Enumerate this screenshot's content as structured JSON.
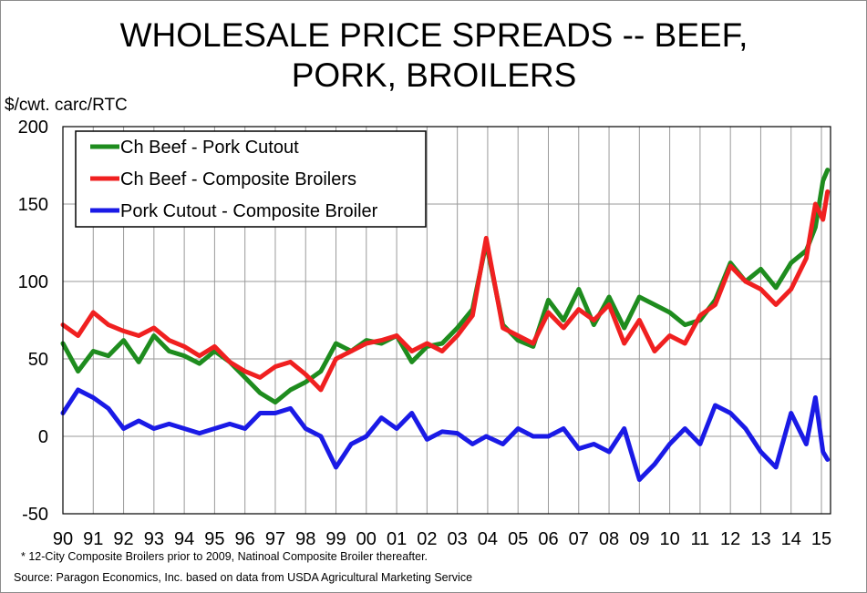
{
  "chart_data": {
    "type": "line",
    "title_lines": [
      "WHOLESALE PRICE SPREADS -- BEEF,",
      "PORK, BROILERS"
    ],
    "ylabel": "$/cwt. carc/RTC",
    "xlabel": "",
    "ylim": [
      -50,
      200
    ],
    "yticks": [
      -50,
      0,
      50,
      100,
      150,
      200
    ],
    "xlim": [
      1990,
      2015.3
    ],
    "xtick_labels": [
      "90",
      "91",
      "92",
      "93",
      "94",
      "95",
      "96",
      "97",
      "98",
      "99",
      "00",
      "01",
      "02",
      "03",
      "04",
      "05",
      "06",
      "07",
      "08",
      "09",
      "10",
      "11",
      "12",
      "13",
      "14",
      "15"
    ],
    "grid": true,
    "legend_position": "top-left",
    "footnote": "* 12-City Composite Broilers prior to 2009, Natinoal Composite Broiler thereafter.",
    "source": "Source:  Paragon Economics, Inc. based on data from USDA Agricultural Marketing Service",
    "series": [
      {
        "name": "Ch Beef - Pork Cutout",
        "color": "#1e8c1e",
        "x": [
          1990,
          1990.5,
          1991,
          1991.5,
          1992,
          1992.5,
          1993,
          1993.5,
          1994,
          1994.5,
          1995,
          1995.5,
          1996,
          1996.5,
          1997,
          1997.5,
          1998,
          1998.5,
          1999,
          1999.5,
          2000,
          2000.5,
          2001,
          2001.5,
          2002,
          2002.5,
          2003,
          2003.5,
          2003.95,
          2004.5,
          2005,
          2005.5,
          2006,
          2006.5,
          2007,
          2007.5,
          2008,
          2008.5,
          2009,
          2009.5,
          2010,
          2010.5,
          2011,
          2011.5,
          2012,
          2012.5,
          2013,
          2013.5,
          2014,
          2014.5,
          2014.8,
          2015.05,
          2015.2
        ],
        "y": [
          60,
          42,
          55,
          52,
          62,
          48,
          65,
          55,
          52,
          47,
          55,
          48,
          38,
          28,
          22,
          30,
          35,
          42,
          60,
          55,
          62,
          60,
          65,
          48,
          58,
          60,
          70,
          82,
          125,
          72,
          62,
          58,
          88,
          75,
          95,
          72,
          90,
          70,
          90,
          85,
          80,
          72,
          75,
          88,
          112,
          100,
          108,
          96,
          112,
          120,
          135,
          165,
          172
        ]
      },
      {
        "name": "Ch Beef - Composite Broilers",
        "color": "#f02020",
        "x": [
          1990,
          1990.5,
          1991,
          1991.5,
          1992,
          1992.5,
          1993,
          1993.5,
          1994,
          1994.5,
          1995,
          1995.5,
          1996,
          1996.5,
          1997,
          1997.5,
          1998,
          1998.5,
          1999,
          1999.5,
          2000,
          2000.5,
          2001,
          2001.5,
          2002,
          2002.5,
          2003,
          2003.5,
          2003.95,
          2004.5,
          2005,
          2005.5,
          2006,
          2006.5,
          2007,
          2007.5,
          2008,
          2008.5,
          2009,
          2009.5,
          2010,
          2010.5,
          2011,
          2011.5,
          2012,
          2012.5,
          2013,
          2013.5,
          2014,
          2014.5,
          2014.8,
          2015.05,
          2015.2
        ],
        "y": [
          72,
          65,
          80,
          72,
          68,
          65,
          70,
          62,
          58,
          52,
          58,
          48,
          42,
          38,
          45,
          48,
          40,
          30,
          50,
          55,
          60,
          62,
          65,
          55,
          60,
          55,
          65,
          78,
          128,
          70,
          65,
          60,
          80,
          70,
          82,
          75,
          85,
          60,
          75,
          55,
          65,
          60,
          78,
          85,
          110,
          100,
          95,
          85,
          95,
          115,
          150,
          140,
          158
        ]
      },
      {
        "name": "Pork Cutout - Composite Broiler",
        "color": "#1a1ae6",
        "x": [
          1990,
          1990.5,
          1991,
          1991.5,
          1992,
          1992.5,
          1993,
          1993.5,
          1994,
          1994.5,
          1995,
          1995.5,
          1996,
          1996.5,
          1997,
          1997.5,
          1998,
          1998.5,
          1999,
          1999.5,
          2000,
          2000.5,
          2001,
          2001.5,
          2002,
          2002.5,
          2003,
          2003.5,
          2003.95,
          2004.5,
          2005,
          2005.5,
          2006,
          2006.5,
          2007,
          2007.5,
          2008,
          2008.5,
          2009,
          2009.5,
          2010,
          2010.5,
          2011,
          2011.5,
          2012,
          2012.5,
          2013,
          2013.5,
          2014,
          2014.5,
          2014.8,
          2015.05,
          2015.2
        ],
        "y": [
          15,
          30,
          25,
          18,
          5,
          10,
          5,
          8,
          5,
          2,
          5,
          8,
          5,
          15,
          15,
          18,
          5,
          0,
          -20,
          -5,
          0,
          12,
          5,
          15,
          -2,
          3,
          2,
          -5,
          0,
          -5,
          5,
          0,
          0,
          5,
          -8,
          -5,
          -10,
          5,
          -28,
          -18,
          -5,
          5,
          -5,
          20,
          15,
          5,
          -10,
          -20,
          15,
          -5,
          25,
          -10,
          -15
        ]
      }
    ]
  }
}
